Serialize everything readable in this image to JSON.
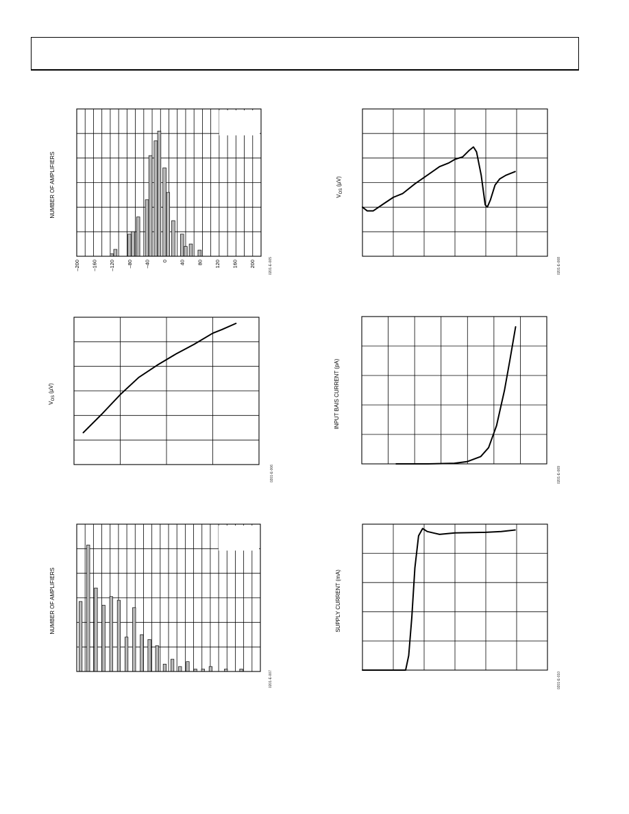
{
  "header": {
    "text": ""
  },
  "charts": [
    {
      "id": "c1",
      "figure_code": "0201-E-005",
      "chart_data": {
        "type": "bar",
        "title": "",
        "xlabel": "",
        "ylabel": "NUMBER OF AMPLIFIERS",
        "x_ticks": [
          "–200",
          "–160",
          "–120",
          "–80",
          "–40",
          "0",
          "40",
          "80",
          "120",
          "160",
          "200"
        ],
        "xlim": [
          -200,
          220
        ],
        "ylim": [
          0,
          6
        ],
        "grid": true,
        "bars": [
          {
            "x": -120,
            "value": 0.1
          },
          {
            "x": -112,
            "value": 0.28
          },
          {
            "x": -80,
            "value": 0.9
          },
          {
            "x": -72,
            "value": 1.0
          },
          {
            "x": -60,
            "value": 1.6
          },
          {
            "x": -40,
            "value": 2.3
          },
          {
            "x": -32,
            "value": 4.1
          },
          {
            "x": -20,
            "value": 4.7
          },
          {
            "x": -12,
            "value": 5.1
          },
          {
            "x": 0,
            "value": 3.6
          },
          {
            "x": 8,
            "value": 2.6
          },
          {
            "x": 20,
            "value": 1.45
          },
          {
            "x": 40,
            "value": 0.9
          },
          {
            "x": 48,
            "value": 0.4
          },
          {
            "x": 60,
            "value": 0.5
          },
          {
            "x": 80,
            "value": 0.25
          }
        ]
      }
    },
    {
      "id": "c2",
      "figure_code": "0201-E-008",
      "chart_data": {
        "type": "line",
        "title": "",
        "xlabel": "",
        "ylabel": "V_OS (µV)",
        "xlim": [
          0,
          6
        ],
        "ylim": [
          0,
          6
        ],
        "grid": true,
        "series": [
          {
            "values": [
              [
                0,
                2.0
              ],
              [
                0.15,
                1.85
              ],
              [
                0.35,
                1.85
              ],
              [
                0.7,
                2.15
              ],
              [
                1.0,
                2.4
              ],
              [
                1.3,
                2.55
              ],
              [
                1.7,
                2.95
              ],
              [
                2.1,
                3.3
              ],
              [
                2.5,
                3.65
              ],
              [
                2.8,
                3.8
              ],
              [
                3.0,
                3.95
              ],
              [
                3.25,
                4.05
              ],
              [
                3.45,
                4.3
              ],
              [
                3.6,
                4.45
              ],
              [
                3.7,
                4.25
              ],
              [
                3.85,
                3.3
              ],
              [
                3.98,
                2.1
              ],
              [
                4.05,
                2.0
              ],
              [
                4.15,
                2.3
              ],
              [
                4.3,
                2.9
              ],
              [
                4.45,
                3.15
              ],
              [
                4.65,
                3.3
              ],
              [
                4.95,
                3.45
              ]
            ]
          }
        ]
      }
    },
    {
      "id": "c3",
      "figure_code": "0201-E-006",
      "chart_data": {
        "type": "line",
        "title": "",
        "xlabel": "",
        "ylabel": "V_OS (µV)",
        "xlim": [
          0,
          4
        ],
        "ylim": [
          0,
          6
        ],
        "grid": true,
        "series": [
          {
            "values": [
              [
                0.2,
                1.3
              ],
              [
                0.6,
                2.05
              ],
              [
                1.0,
                2.85
              ],
              [
                1.4,
                3.55
              ],
              [
                1.8,
                4.05
              ],
              [
                2.2,
                4.5
              ],
              [
                2.6,
                4.9
              ],
              [
                3.0,
                5.35
              ],
              [
                3.2,
                5.5
              ],
              [
                3.5,
                5.75
              ]
            ]
          }
        ]
      }
    },
    {
      "id": "c4",
      "figure_code": "0201-E-009",
      "chart_data": {
        "type": "line",
        "title": "",
        "xlabel": "",
        "ylabel": "INPUT BAIS CURRENT (pA)",
        "xlim": [
          0,
          7
        ],
        "ylim": [
          0,
          5
        ],
        "grid": true,
        "series": [
          {
            "values": [
              [
                1.3,
                0.0
              ],
              [
                2.5,
                0.0
              ],
              [
                3.5,
                0.02
              ],
              [
                4.0,
                0.08
              ],
              [
                4.5,
                0.25
              ],
              [
                4.8,
                0.55
              ],
              [
                5.1,
                1.3
              ],
              [
                5.4,
                2.5
              ],
              [
                5.6,
                3.5
              ],
              [
                5.82,
                4.65
              ]
            ]
          }
        ]
      }
    },
    {
      "id": "c5",
      "figure_code": "0201-E-007",
      "chart_data": {
        "type": "bar",
        "title": "",
        "xlabel": "",
        "ylabel": "NUMBER OF AMPLIFIERS",
        "xlim": [
          0,
          24
        ],
        "ylim": [
          0,
          6
        ],
        "grid": true,
        "bars": [
          {
            "x": 1,
            "value": 2.85
          },
          {
            "x": 2,
            "value": 5.15
          },
          {
            "x": 3,
            "value": 3.4
          },
          {
            "x": 4,
            "value": 2.7
          },
          {
            "x": 5,
            "value": 3.05
          },
          {
            "x": 6,
            "value": 2.9
          },
          {
            "x": 7,
            "value": 1.4
          },
          {
            "x": 8,
            "value": 2.6
          },
          {
            "x": 9,
            "value": 1.5
          },
          {
            "x": 10,
            "value": 1.3
          },
          {
            "x": 11,
            "value": 1.05
          },
          {
            "x": 12,
            "value": 0.3
          },
          {
            "x": 13,
            "value": 0.5
          },
          {
            "x": 14,
            "value": 0.2
          },
          {
            "x": 15,
            "value": 0.4
          },
          {
            "x": 16,
            "value": 0.1
          },
          {
            "x": 17,
            "value": 0.1
          },
          {
            "x": 18,
            "value": 0.2
          },
          {
            "x": 20,
            "value": 0.1
          },
          {
            "x": 22,
            "value": 0.1
          }
        ]
      }
    },
    {
      "id": "c6",
      "figure_code": "0201-E-010",
      "chart_data": {
        "type": "line",
        "title": "",
        "xlabel": "",
        "ylabel": "SUPPLY CURRENT (mA)",
        "xlim": [
          0,
          6
        ],
        "ylim": [
          0,
          5
        ],
        "grid": true,
        "series": [
          {
            "values": [
              [
                0,
                0.0
              ],
              [
                1.4,
                0.0
              ],
              [
                1.5,
                0.5
              ],
              [
                1.6,
                1.8
              ],
              [
                1.7,
                3.5
              ],
              [
                1.82,
                4.6
              ],
              [
                1.95,
                4.85
              ],
              [
                2.1,
                4.75
              ],
              [
                2.5,
                4.65
              ],
              [
                3.0,
                4.7
              ],
              [
                4.0,
                4.72
              ],
              [
                4.5,
                4.75
              ],
              [
                4.95,
                4.8
              ]
            ]
          }
        ]
      }
    }
  ]
}
